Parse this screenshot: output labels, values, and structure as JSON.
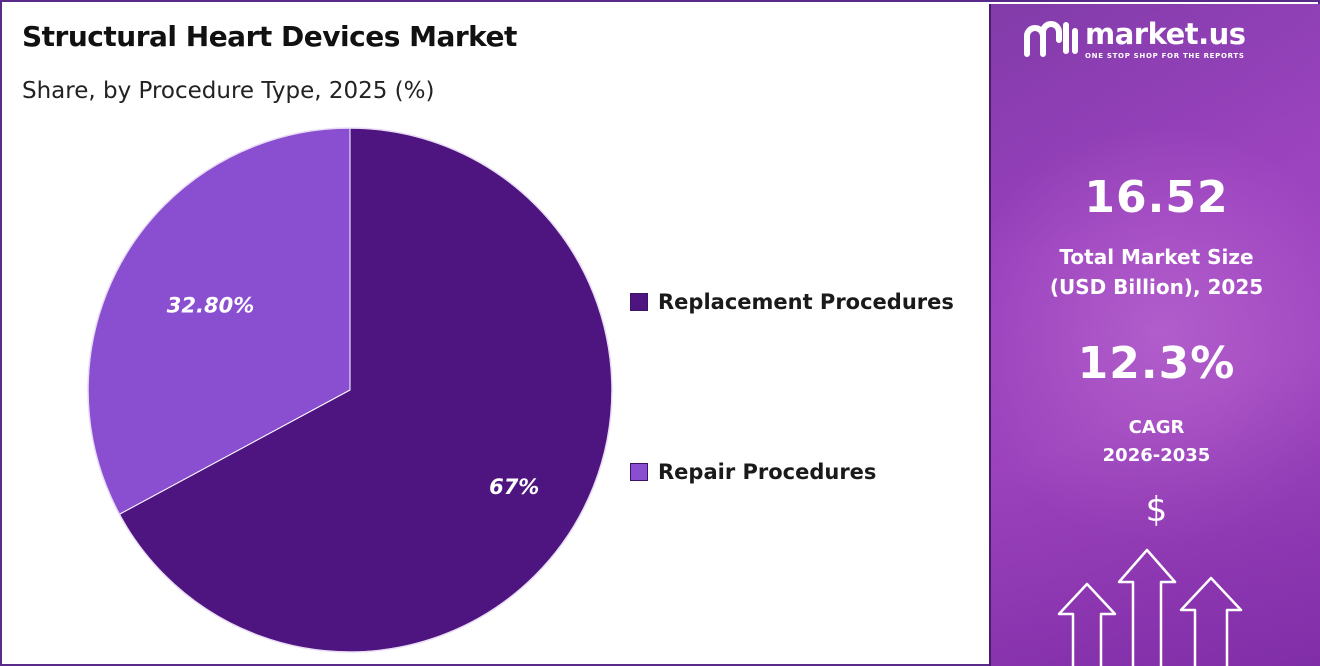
{
  "title": "Structural Heart Devices Market",
  "subtitle": "Share, by Procedure Type, 2025 (%)",
  "chart_data": {
    "type": "pie",
    "title": "Structural Heart Devices Market",
    "subtitle": "Share, by Procedure Type, 2025 (%)",
    "slices": [
      {
        "name": "Replacement Procedures",
        "value": 67,
        "label": "67%",
        "color": "#4e1580"
      },
      {
        "name": "Repair Procedures",
        "value": 32.8,
        "label": "32.80%",
        "color": "#8a4fd1"
      }
    ],
    "legend_position": "right"
  },
  "legend": {
    "items": [
      {
        "label": "Replacement Procedures",
        "color": "#4e1580"
      },
      {
        "label": "Repair Procedures",
        "color": "#8a4fd1"
      }
    ]
  },
  "brand": {
    "name": "market.us",
    "tagline": "ONE STOP SHOP FOR THE REPORTS",
    "panel_color": "#9b3cc0"
  },
  "stats": {
    "market_size_value": "16.52",
    "market_size_label_1": "Total Market Size",
    "market_size_label_2": "(USD Billion), 2025",
    "cagr_value": "12.3%",
    "cagr_label_1": "CAGR",
    "cagr_label_2": "2026-2035"
  },
  "icons": {
    "currency": "$",
    "currency_icon": "dollar-icon",
    "growth_icon": "growth-arrows-icon"
  }
}
